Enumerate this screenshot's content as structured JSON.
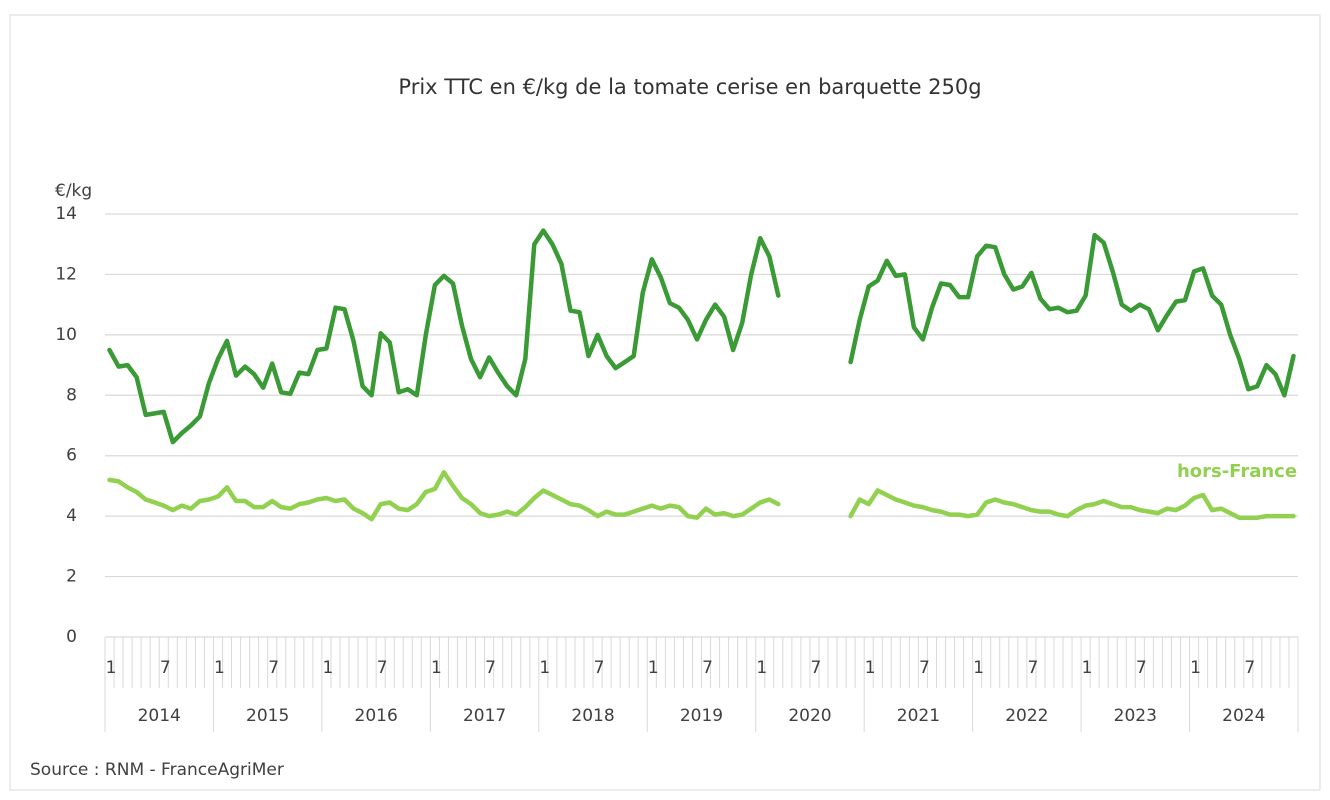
{
  "chart_data": {
    "type": "line",
    "title": "Prix TTC en €/kg de la tomate cerise en barquette 250g",
    "y_label": "€/kg",
    "source": "Source : RNM - FranceAgriMer",
    "categories": [
      "1",
      null,
      null,
      null,
      null,
      null,
      "7",
      null,
      null,
      null,
      null,
      null,
      "1",
      null,
      null,
      null,
      null,
      null,
      "7",
      null,
      null,
      null,
      null,
      null,
      "1",
      null,
      null,
      null,
      null,
      null,
      "7",
      null,
      null,
      null,
      null,
      null,
      "1",
      null,
      null,
      null,
      null,
      null,
      "7",
      null,
      null,
      null,
      null,
      null,
      "1",
      null,
      null,
      null,
      null,
      null,
      "7",
      null,
      null,
      null,
      null,
      null,
      "1",
      null,
      null,
      null,
      null,
      null,
      "7",
      null,
      null,
      null,
      null,
      null,
      "1",
      null,
      null,
      null,
      null,
      null,
      "7",
      null,
      null,
      null,
      null,
      null,
      "1",
      null,
      null,
      null,
      null,
      null,
      "7",
      null,
      null,
      null,
      null,
      null,
      "1",
      null,
      null,
      null,
      null,
      null,
      "7",
      null,
      null,
      null,
      null,
      null,
      "1",
      null,
      null,
      null,
      null,
      null,
      "7",
      null,
      null,
      null,
      null,
      null,
      "1",
      null,
      null,
      null,
      null,
      null,
      "7",
      null,
      null,
      null,
      null,
      null
    ],
    "years": [
      "2014",
      "2015",
      "2016",
      "2017",
      "2018",
      "2019",
      "2020",
      "2021",
      "2022",
      "2023",
      "2024"
    ],
    "series": [
      {
        "color": "#3a9a35",
        "values": [
          9.5,
          8.95,
          9.0,
          8.6,
          7.35,
          7.4,
          7.45,
          6.45,
          6.75,
          7.0,
          7.3,
          8.4,
          9.2,
          9.8,
          8.65,
          8.95,
          8.7,
          8.25,
          9.05,
          8.1,
          8.05,
          8.75,
          8.7,
          9.5,
          9.55,
          10.9,
          10.85,
          9.8,
          8.3,
          8.0,
          10.05,
          9.75,
          8.1,
          8.2,
          8.0,
          10.0,
          11.65,
          11.95,
          11.7,
          10.3,
          9.2,
          8.6,
          9.25,
          8.75,
          8.3,
          8.0,
          9.2,
          13.0,
          13.45,
          13.0,
          12.35,
          10.8,
          10.75,
          9.3,
          10.0,
          9.3,
          8.9,
          9.1,
          9.3,
          11.4,
          12.5,
          11.9,
          11.05,
          10.9,
          10.5,
          9.85,
          10.5,
          11.0,
          10.6,
          9.5,
          10.4,
          12.0,
          13.2,
          12.6,
          11.3,
          null,
          null,
          null,
          null,
          null,
          null,
          null,
          9.1,
          10.5,
          11.6,
          11.8,
          12.45,
          11.95,
          12.0,
          10.25,
          9.85,
          10.9,
          11.7,
          11.65,
          11.25,
          11.25,
          12.6,
          12.95,
          12.9,
          12.0,
          11.5,
          11.6,
          12.05,
          11.2,
          10.85,
          10.9,
          10.75,
          10.8,
          11.3,
          13.3,
          13.05,
          12.1,
          11.0,
          10.8,
          11.0,
          10.85,
          10.15,
          10.65,
          11.1,
          11.15,
          12.1,
          12.2,
          11.3,
          11.0,
          10.0,
          9.2,
          8.2,
          8.3,
          9.0,
          8.7,
          8.0,
          9.3
        ]
      },
      {
        "name": "hors-France",
        "color": "#92d050",
        "values": [
          5.2,
          5.15,
          4.95,
          4.8,
          4.55,
          4.45,
          4.35,
          4.2,
          4.35,
          4.25,
          4.5,
          4.55,
          4.65,
          4.95,
          4.5,
          4.5,
          4.3,
          4.3,
          4.5,
          4.3,
          4.25,
          4.4,
          4.45,
          4.55,
          4.6,
          4.5,
          4.55,
          4.25,
          4.1,
          3.9,
          4.4,
          4.45,
          4.25,
          4.2,
          4.4,
          4.8,
          4.9,
          5.45,
          5.0,
          4.6,
          4.4,
          4.1,
          4.0,
          4.05,
          4.15,
          4.05,
          4.3,
          4.6,
          4.85,
          4.7,
          4.55,
          4.4,
          4.35,
          4.2,
          4.0,
          4.15,
          4.05,
          4.05,
          4.15,
          4.25,
          4.35,
          4.25,
          4.35,
          4.3,
          4.0,
          3.95,
          4.25,
          4.05,
          4.1,
          4.0,
          4.05,
          4.25,
          4.45,
          4.55,
          4.4,
          null,
          null,
          null,
          null,
          null,
          null,
          null,
          4.0,
          4.55,
          4.4,
          4.85,
          4.7,
          4.55,
          4.45,
          4.35,
          4.3,
          4.2,
          4.15,
          4.05,
          4.05,
          4.0,
          4.05,
          4.45,
          4.55,
          4.45,
          4.4,
          4.3,
          4.2,
          4.15,
          4.15,
          4.05,
          4.0,
          4.2,
          4.35,
          4.4,
          4.5,
          4.4,
          4.3,
          4.3,
          4.2,
          4.15,
          4.1,
          4.25,
          4.2,
          4.35,
          4.6,
          4.7,
          4.2,
          4.25,
          4.1,
          3.95,
          3.95,
          3.95,
          4.0,
          4.0,
          4.0,
          4.0
        ]
      }
    ],
    "ylim": [
      0,
      14
    ],
    "yticks": [
      0,
      2,
      4,
      6,
      8,
      10,
      12,
      14
    ],
    "grid": true
  }
}
